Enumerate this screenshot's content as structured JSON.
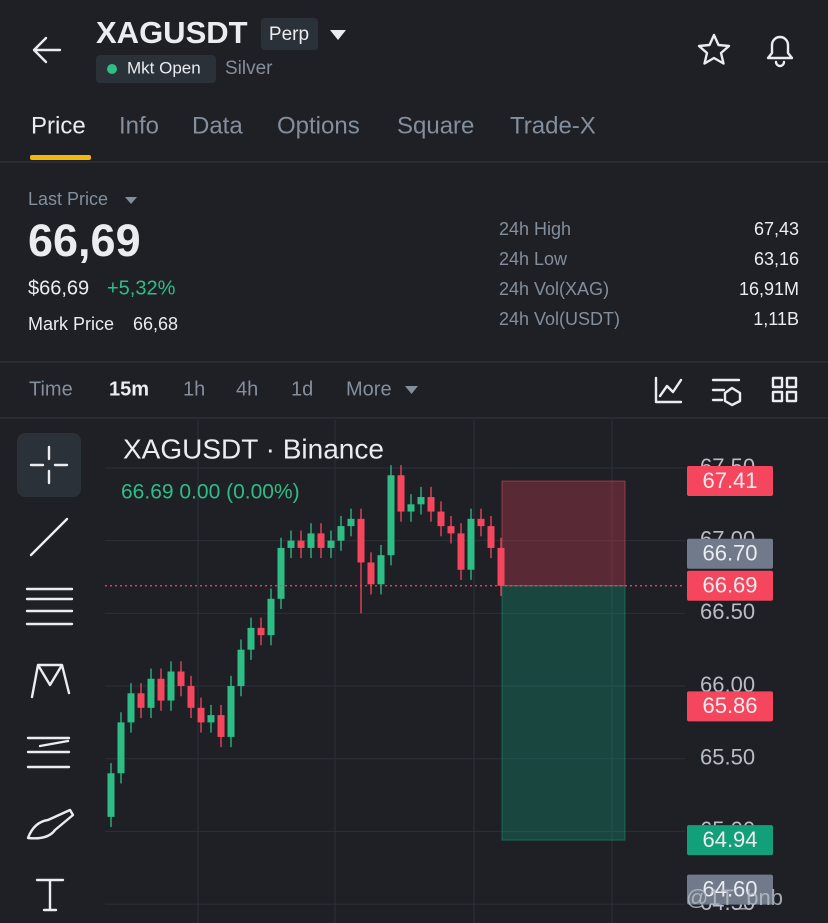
{
  "header": {
    "symbol": "XAGUSDT",
    "contract": "Perp",
    "status": "Mkt Open",
    "name": "Silver"
  },
  "tabs": [
    "Price",
    "Info",
    "Data",
    "Options",
    "Square",
    "Trade-X"
  ],
  "active_tab": 0,
  "price": {
    "label": "Last Price",
    "last": "66,69",
    "usd": "$66,69",
    "change": "+5,32%",
    "mark_label": "Mark Price",
    "mark": "66,68"
  },
  "stats": [
    {
      "label": "24h High",
      "value": "67,43"
    },
    {
      "label": "24h Low",
      "value": "63,16"
    },
    {
      "label": "24h Vol(XAG)",
      "value": "16,91M"
    },
    {
      "label": "24h Vol(USDT)",
      "value": "1,11B"
    }
  ],
  "intervals": [
    "Time",
    "15m",
    "1h",
    "4h",
    "1d",
    "More"
  ],
  "active_interval": 1,
  "chart_data": {
    "type": "candlestick",
    "title": "XAGUSDT · Binance",
    "legend": "66.69  0.00 (0.00%)",
    "open": [
      65.1,
      65.4,
      65.75,
      65.95,
      65.85,
      66.05,
      65.9,
      66.1,
      66.0,
      65.85,
      65.75,
      65.8,
      65.65,
      66.0,
      66.25,
      66.4,
      66.35,
      66.6,
      66.95,
      67.0,
      66.95,
      67.05,
      66.95,
      67.0,
      67.1,
      67.15,
      66.85,
      66.7,
      66.9,
      67.45,
      67.2,
      67.25,
      67.3,
      67.2,
      67.1,
      67.05,
      66.8,
      67.15,
      67.1,
      66.95
    ],
    "high": [
      65.47,
      65.82,
      66.02,
      66.02,
      66.12,
      66.12,
      66.17,
      66.17,
      66.07,
      65.92,
      65.87,
      65.87,
      66.07,
      66.32,
      66.47,
      66.47,
      66.67,
      67.02,
      67.07,
      67.07,
      67.12,
      67.12,
      67.07,
      67.17,
      67.22,
      67.22,
      66.92,
      66.97,
      67.52,
      67.52,
      67.32,
      67.37,
      67.37,
      67.27,
      67.17,
      67.12,
      67.22,
      67.22,
      67.17,
      67.02
    ],
    "low": [
      65.03,
      65.33,
      65.68,
      65.78,
      65.78,
      65.83,
      65.83,
      65.93,
      65.78,
      65.68,
      65.68,
      65.58,
      65.58,
      65.93,
      66.18,
      66.28,
      66.28,
      66.53,
      66.88,
      66.88,
      66.88,
      66.88,
      66.88,
      66.93,
      67.03,
      66.5,
      66.63,
      66.63,
      66.83,
      67.13,
      67.13,
      67.18,
      67.13,
      67.03,
      66.98,
      66.73,
      66.73,
      67.03,
      66.88,
      66.62
    ],
    "close": [
      65.4,
      65.75,
      65.95,
      65.85,
      66.05,
      65.9,
      66.1,
      66.0,
      65.85,
      65.75,
      65.8,
      65.65,
      66.0,
      66.25,
      66.4,
      66.35,
      66.6,
      66.95,
      67.0,
      66.95,
      67.05,
      66.95,
      67.0,
      67.1,
      67.15,
      66.85,
      66.7,
      66.9,
      67.45,
      67.2,
      67.25,
      67.3,
      67.2,
      67.1,
      67.05,
      66.8,
      67.15,
      67.1,
      66.95,
      66.69
    ],
    "up_color": "#2ebd85",
    "down_color": "#f6465d",
    "ylim": [
      64.37,
      67.83
    ],
    "yticks": [
      {
        "value": 64.5,
        "label": "64.50"
      },
      {
        "value": 65,
        "label": "65.00"
      },
      {
        "value": 65.5,
        "label": "65.50"
      },
      {
        "value": 66,
        "label": "66.00"
      },
      {
        "value": 66.5,
        "label": "66.50"
      },
      {
        "value": 67,
        "label": "67.00"
      },
      {
        "value": 67.5,
        "label": "67.50"
      }
    ],
    "grid": true,
    "position": {
      "stop": 67.41,
      "entry": 66.69,
      "target": 64.94
    },
    "price_tags": [
      {
        "value": 67.41,
        "label": "67.41",
        "color": "#f6465d"
      },
      {
        "value": 66.7,
        "label": "66.70",
        "color": "#707a8a"
      },
      {
        "value": 66.69,
        "label": "66.69",
        "color": "#f6465d"
      },
      {
        "value": 65.86,
        "label": "65.86",
        "color": "#f6465d"
      },
      {
        "value": 64.94,
        "label": "64.94",
        "color": "#12a07a"
      },
      {
        "value": 64.6,
        "label": "64.60",
        "color": "#707a8a"
      }
    ]
  },
  "watermark": "@1T_bnb"
}
